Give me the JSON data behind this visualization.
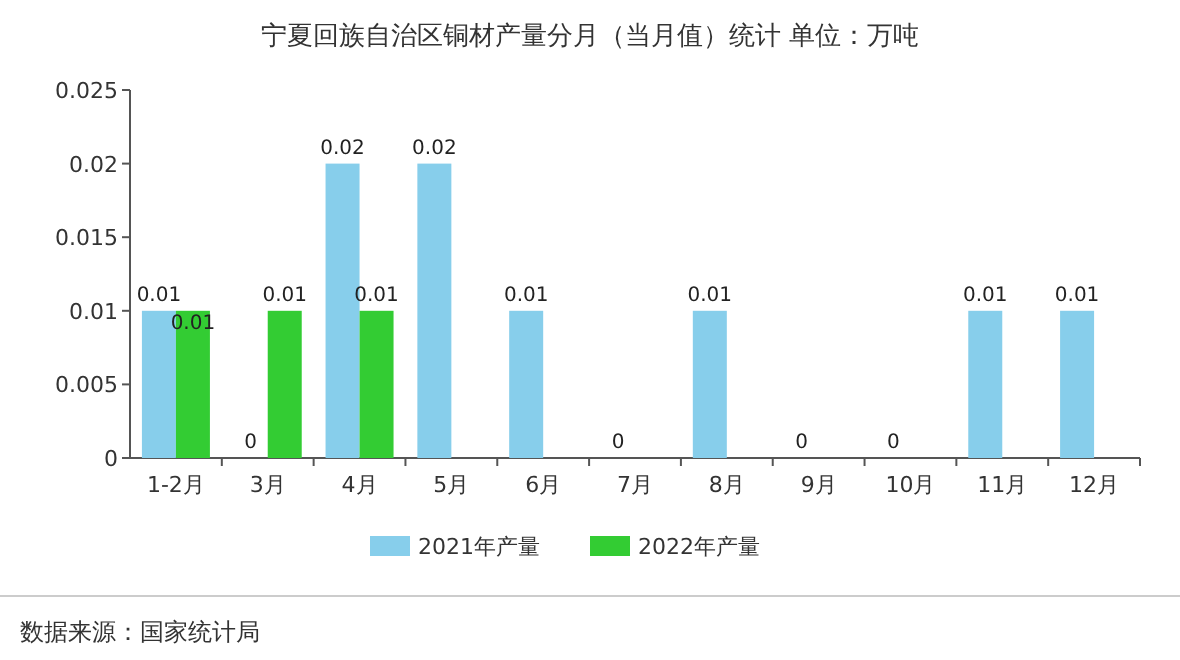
{
  "chart_data": {
    "type": "bar",
    "title": "宁夏回族自治区铜材产量分月（当月值）统计 单位：万吨",
    "categories": [
      "1-2月",
      "3月",
      "4月",
      "5月",
      "6月",
      "7月",
      "8月",
      "9月",
      "10月",
      "11月",
      "12月"
    ],
    "series": [
      {
        "name": "2021年产量",
        "color": "#87ceeb",
        "values": [
          0.01,
          0,
          0.02,
          0.02,
          0.01,
          0,
          0.01,
          0,
          0,
          0.01,
          0.01
        ]
      },
      {
        "name": "2022年产量",
        "color": "#33cc33",
        "values": [
          0.01,
          0.01,
          0.01,
          null,
          null,
          null,
          null,
          null,
          null,
          null,
          null
        ]
      }
    ],
    "ylim": [
      0,
      0.025
    ],
    "yticks": [
      0,
      0.005,
      0.01,
      0.015,
      0.02,
      0.025
    ],
    "data_labels": true,
    "legend": "bottom",
    "annotations": [
      "数据来源：国家统计局"
    ]
  }
}
